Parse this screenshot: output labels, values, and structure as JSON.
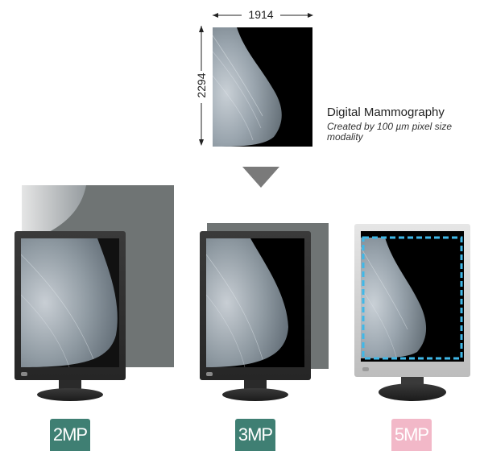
{
  "source_image": {
    "width_label": "1914",
    "height_label": "2294"
  },
  "caption": {
    "title": "Digital Mammography",
    "subtitle": "Created by 100 µm pixel size modality"
  },
  "monitors": [
    {
      "label": "2MP",
      "badge_color": "#3f7f73"
    },
    {
      "label": "3MP",
      "badge_color": "#3f7f73"
    },
    {
      "label": "5MP",
      "badge_color": "#f2b8c8"
    }
  ],
  "colors": {
    "overlay_gray": "#6f7474",
    "fit_outline": "#3fb8e8",
    "arrow_gray": "#7a7a7a"
  },
  "icons": [
    "double-arrow-icon",
    "down-triangle-icon"
  ]
}
